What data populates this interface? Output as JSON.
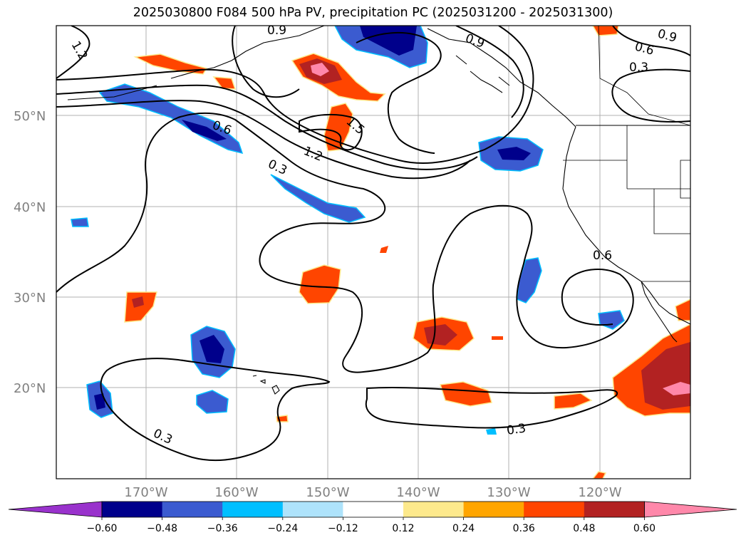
{
  "title": "2025030800 F084 500 hPa PV, precipitation PC (2025031200 - 2025031300)",
  "map": {
    "lat_ticks": [
      "50°N",
      "40°N",
      "30°N",
      "20°N"
    ],
    "lon_ticks": [
      "170°W",
      "160°W",
      "150°W",
      "140°W",
      "130°W",
      "120°W"
    ],
    "contour_labels": [
      "1.2",
      "0.9",
      "0.9",
      "0.6",
      "0.9",
      "0.3",
      "0.6",
      "1.5",
      "1.2",
      "0.3",
      "0.6",
      "0.3",
      "0.3"
    ],
    "gridline_color": "#b0b0b0",
    "contour_color": "#000000"
  },
  "colorbar": {
    "ticks": [
      "−0.60",
      "−0.48",
      "−0.36",
      "−0.24",
      "−0.12",
      "0.12",
      "0.24",
      "0.36",
      "0.48",
      "0.60"
    ],
    "colors": [
      "#9932cc",
      "#00008b",
      "#3b5bd0",
      "#00bfff",
      "#aee3fb",
      "#ffffff",
      "#fde98c",
      "#ffa500",
      "#ff4500",
      "#b22222",
      "#ff88aa"
    ]
  }
}
